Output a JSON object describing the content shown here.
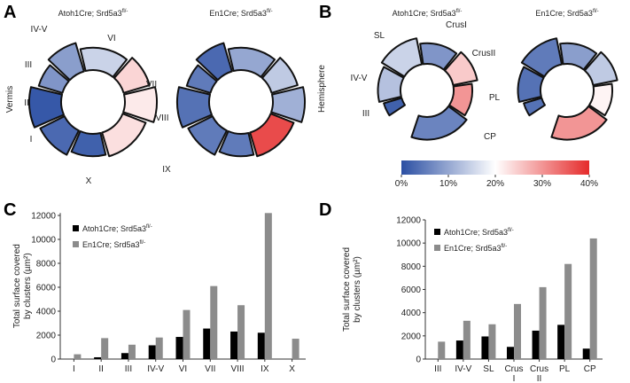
{
  "chart_data": [
    {
      "type": "heatmap",
      "panel": "A",
      "row_label": "Vermis",
      "categories": [
        "X",
        "I",
        "II",
        "III",
        "IV-V",
        "VI",
        "VII",
        "VIII",
        "IX"
      ],
      "series": [
        {
          "name": "Atoh1Cre; Srd5a3",
          "superscript": "fl/-",
          "values": [
            2,
            3,
            1,
            8,
            9,
            15,
            24,
            22,
            23
          ]
        },
        {
          "name": "En1Cre; Srd5a3",
          "superscript": "fl/-",
          "values": [
            5,
            5,
            4,
            5,
            3,
            10,
            14,
            11,
            37
          ]
        }
      ]
    },
    {
      "type": "heatmap",
      "panel": "B",
      "row_label": "Hemisphere",
      "categories": [
        "III",
        "IV-V",
        "SL",
        "CrusI",
        "CrusII",
        "PL",
        "CP"
      ],
      "series": [
        {
          "name": "Atoh1Cre; Srd5a3",
          "superscript": "fl/-",
          "values": [
            2,
            13,
            15,
            8,
            25,
            30,
            6
          ]
        },
        {
          "name": "En1Cre; Srd5a3",
          "superscript": "fl/-",
          "values": [
            4,
            4,
            5,
            9,
            14,
            21,
            30
          ]
        }
      ],
      "colormap": [
        "#2b4fa3",
        "#ffffff",
        "#e52b2b"
      ],
      "clim": [
        0,
        40
      ],
      "cticks": [
        {
          "value": 0,
          "label": "0%"
        },
        {
          "value": 10,
          "label": "10%"
        },
        {
          "value": 20,
          "label": "20%"
        },
        {
          "value": 30,
          "label": "30%"
        },
        {
          "value": 40,
          "label": "40%"
        }
      ]
    },
    {
      "type": "bar",
      "panel": "C",
      "y_label": [
        "Total surface covered",
        "by clusters (µm²)"
      ],
      "categories": [
        "I",
        "II",
        "III",
        "IV-V",
        "VI",
        "VII",
        "VIII",
        "IX",
        "X"
      ],
      "series": [
        {
          "name": "Atoh1Cre; Srd5a3",
          "superscript": "fl/-",
          "color": "#000000",
          "values": [
            0,
            150,
            500,
            1150,
            1850,
            2550,
            2300,
            2200,
            0
          ]
        },
        {
          "name": "En1Cre; Srd5a3",
          "superscript": "fl/-",
          "color": "#8c8c8c",
          "values": [
            400,
            1750,
            1200,
            1800,
            4100,
            6100,
            4500,
            12200,
            1700
          ]
        }
      ],
      "ylim": [
        0,
        12200
      ],
      "yticks": [
        0,
        2000,
        4000,
        6000,
        8000,
        10000,
        12000
      ]
    },
    {
      "type": "bar",
      "panel": "D",
      "y_label": [
        "Total surface covered",
        "by clusters (µm²)"
      ],
      "categories": [
        "III",
        "IV-V",
        "SL",
        "Crus I",
        "Crus II",
        "PL",
        "CP"
      ],
      "series": [
        {
          "name": "Atoh1Cre; Srd5a3",
          "superscript": "fl/-",
          "color": "#000000",
          "values": [
            0,
            1600,
            1950,
            1050,
            2450,
            2950,
            900
          ]
        },
        {
          "name": "En1Cre; Srd5a3",
          "superscript": "fl/-",
          "color": "#8c8c8c",
          "values": [
            1500,
            3300,
            3000,
            4750,
            6200,
            8200,
            10400
          ]
        }
      ],
      "ylim": [
        0,
        12000
      ],
      "yticks": [
        0,
        2000,
        4000,
        6000,
        8000,
        10000,
        12000
      ]
    }
  ]
}
